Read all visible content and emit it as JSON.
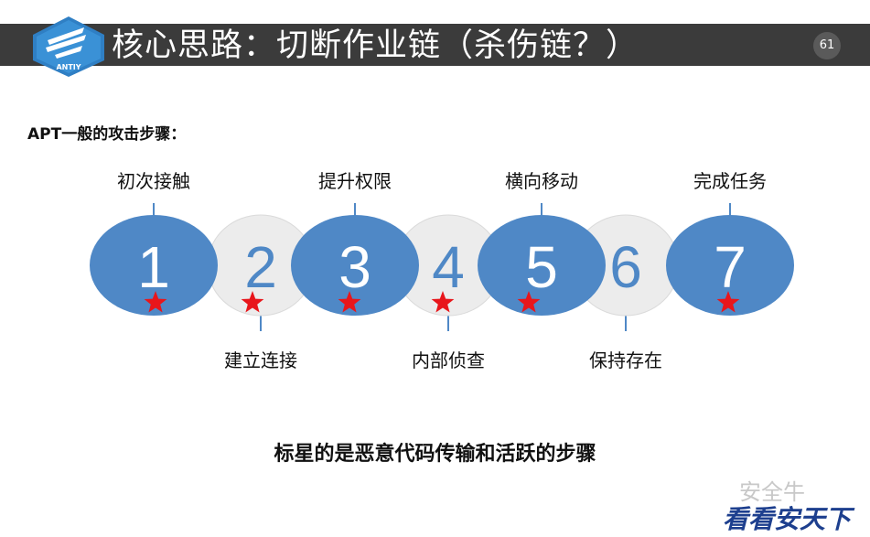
{
  "header": {
    "logo_text": "ANTIY",
    "title": "核心思路：切断作业链（杀伤链？）",
    "page_number": "61"
  },
  "section_heading": "APT一般的攻击步骤：",
  "steps": [
    {
      "number": "1",
      "label": "初次接触",
      "starred": true,
      "color": "#4f88c6"
    },
    {
      "number": "2",
      "label": "建立连接",
      "starred": true,
      "color": "#ececec"
    },
    {
      "number": "3",
      "label": "提升权限",
      "starred": true,
      "color": "#4f88c6"
    },
    {
      "number": "4",
      "label": "内部侦查",
      "starred": true,
      "color": "#ececec"
    },
    {
      "number": "5",
      "label": "横向移动",
      "starred": true,
      "color": "#4f88c6"
    },
    {
      "number": "6",
      "label": "保持存在",
      "starred": false,
      "color": "#ececec"
    },
    {
      "number": "7",
      "label": "完成任务",
      "starred": true,
      "color": "#4f88c6"
    }
  ],
  "footnote": "标星的是恶意代码传输和活跃的步骤",
  "watermark": {
    "account": "安全牛",
    "script": "看看安天下"
  },
  "colors": {
    "title_bar": "#3b3b3b",
    "blue_step": "#4f88c6",
    "grey_step": "#ececec",
    "star": "#e8161b"
  }
}
